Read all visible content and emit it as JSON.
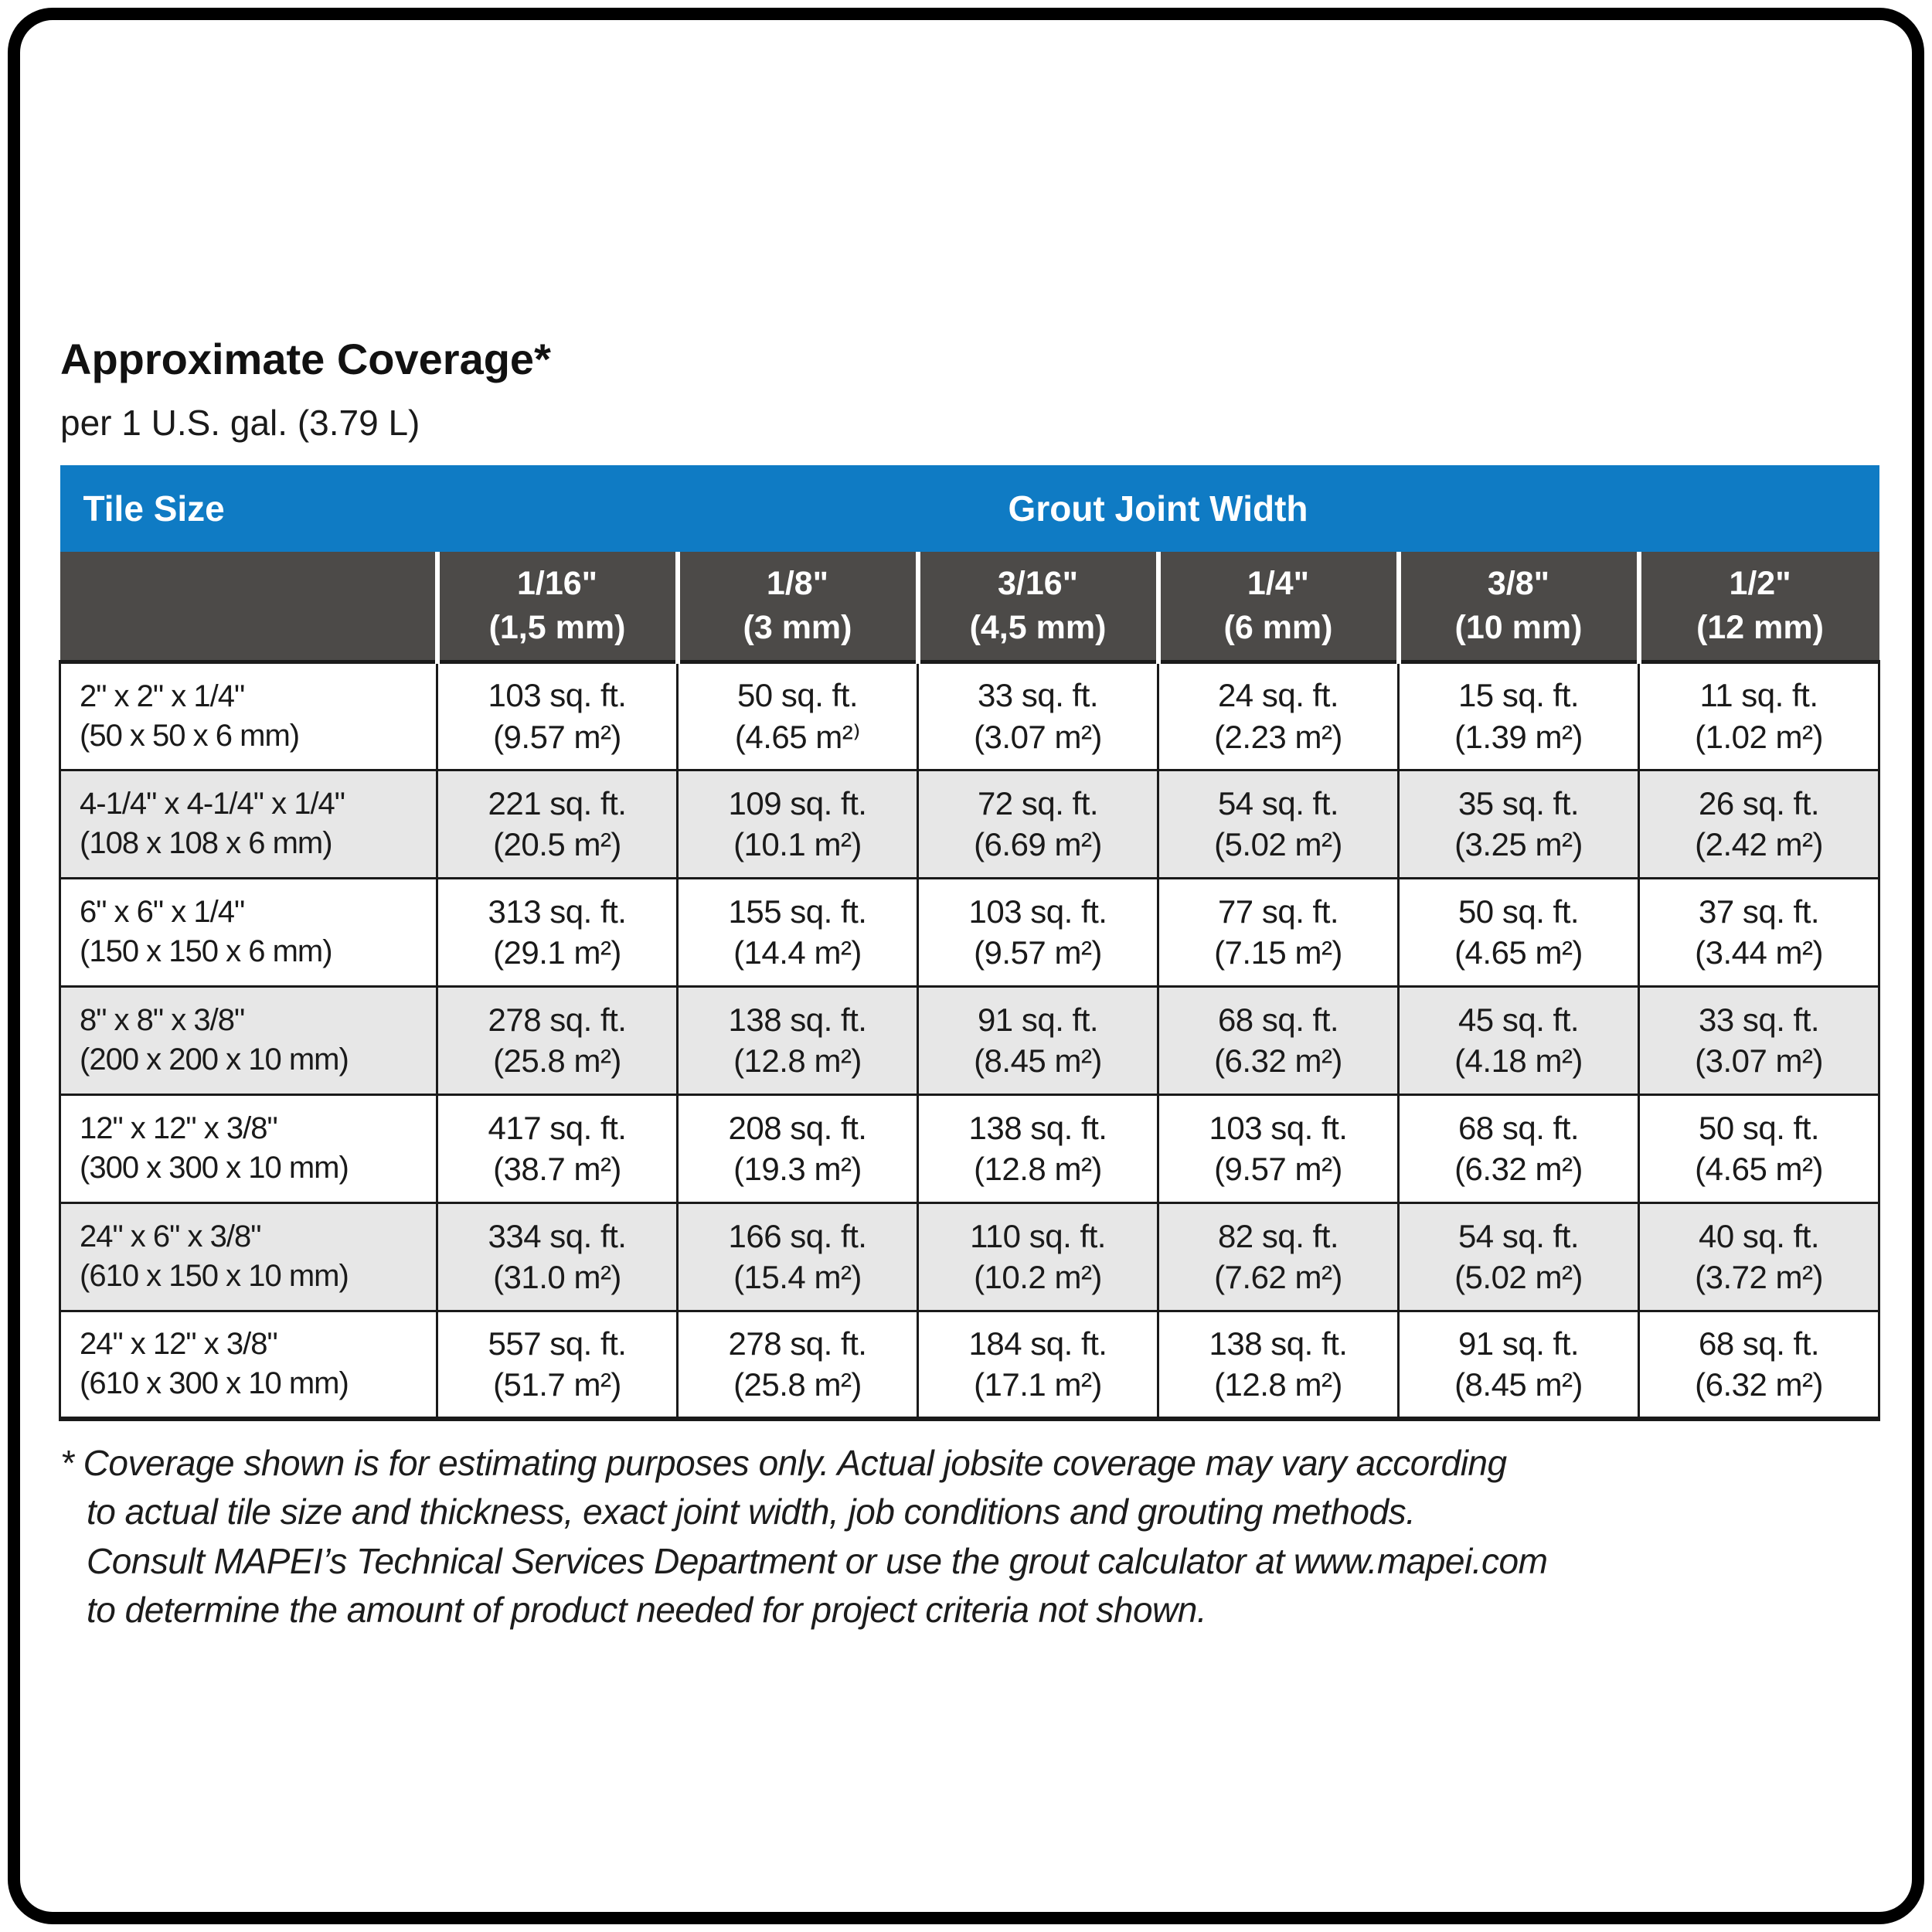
{
  "title": "Approximate Coverage*",
  "subtitle": "per 1 U.S. gal. (3.79 L)",
  "colors": {
    "header_blue": "#0f7bc4",
    "subheader_gray": "#4c4a48",
    "row_alt_gray": "#e7e7e7",
    "ink": "#1a1a1a"
  },
  "table": {
    "corner_header": "Tile Size",
    "group_header": "Grout Joint Width",
    "columns": [
      [
        "1/16\"",
        "(1,5 mm)"
      ],
      [
        "1/8\"",
        "(3 mm)"
      ],
      [
        "3/16\"",
        "(4,5 mm)"
      ],
      [
        "1/4\"",
        "(6 mm)"
      ],
      [
        "3/8\"",
        "(10 mm)"
      ],
      [
        "1/2\"",
        "(12 mm)"
      ]
    ],
    "rows": [
      {
        "size": [
          "2\" x 2\" x 1/4\"",
          "(50 x 50 x 6 mm)"
        ],
        "cells": [
          [
            "103 sq. ft.",
            "(9.57 m²)"
          ],
          [
            "50 sq. ft.",
            "(4.65 m²⁾"
          ],
          [
            "33 sq. ft.",
            "(3.07 m²)"
          ],
          [
            "24 sq. ft.",
            "(2.23 m²)"
          ],
          [
            "15 sq. ft.",
            "(1.39 m²)"
          ],
          [
            "11 sq. ft.",
            "(1.02 m²)"
          ]
        ]
      },
      {
        "size": [
          "4-1/4\" x 4-1/4\" x 1/4\"",
          "(108 x 108 x 6 mm)"
        ],
        "cells": [
          [
            "221 sq. ft.",
            "(20.5 m²)"
          ],
          [
            "109 sq. ft.",
            "(10.1 m²)"
          ],
          [
            "72 sq. ft.",
            "(6.69 m²)"
          ],
          [
            "54 sq. ft.",
            "(5.02 m²)"
          ],
          [
            "35 sq. ft.",
            "(3.25 m²)"
          ],
          [
            "26 sq. ft.",
            "(2.42 m²)"
          ]
        ]
      },
      {
        "size": [
          "6\" x 6\" x 1/4\"",
          "(150 x 150 x 6 mm)"
        ],
        "cells": [
          [
            "313 sq. ft.",
            "(29.1 m²)"
          ],
          [
            "155 sq. ft.",
            "(14.4 m²)"
          ],
          [
            "103 sq. ft.",
            "(9.57 m²)"
          ],
          [
            "77 sq. ft.",
            "(7.15 m²)"
          ],
          [
            "50 sq. ft.",
            "(4.65 m²)"
          ],
          [
            "37 sq. ft.",
            "(3.44 m²)"
          ]
        ]
      },
      {
        "size": [
          "8\" x 8\" x 3/8\"",
          "(200 x 200 x 10 mm)"
        ],
        "cells": [
          [
            "278 sq. ft.",
            "(25.8 m²)"
          ],
          [
            "138 sq. ft.",
            "(12.8 m²)"
          ],
          [
            "91 sq. ft.",
            "(8.45 m²)"
          ],
          [
            "68 sq. ft.",
            "(6.32 m²)"
          ],
          [
            "45 sq. ft.",
            "(4.18 m²)"
          ],
          [
            "33 sq. ft.",
            "(3.07 m²)"
          ]
        ]
      },
      {
        "size": [
          "12\" x 12\" x 3/8\"",
          "(300 x 300 x 10 mm)"
        ],
        "cells": [
          [
            "417 sq. ft.",
            "(38.7 m²)"
          ],
          [
            "208 sq. ft.",
            "(19.3 m²)"
          ],
          [
            "138 sq. ft.",
            "(12.8 m²)"
          ],
          [
            "103 sq. ft.",
            "(9.57 m²)"
          ],
          [
            "68 sq. ft.",
            "(6.32 m²)"
          ],
          [
            "50 sq. ft.",
            "(4.65 m²)"
          ]
        ]
      },
      {
        "size": [
          "24\" x 6\" x 3/8\"",
          "(610 x 150 x 10 mm)"
        ],
        "cells": [
          [
            "334 sq. ft.",
            "(31.0 m²)"
          ],
          [
            "166 sq. ft.",
            "(15.4 m²)"
          ],
          [
            "110 sq. ft.",
            "(10.2 m²)"
          ],
          [
            "82 sq. ft.",
            "(7.62 m²)"
          ],
          [
            "54 sq. ft.",
            "(5.02 m²)"
          ],
          [
            "40 sq. ft.",
            "(3.72 m²)"
          ]
        ]
      },
      {
        "size": [
          "24\" x 12\" x 3/8\"",
          "(610 x 300 x 10 mm)"
        ],
        "cells": [
          [
            "557 sq. ft.",
            "(51.7 m²)"
          ],
          [
            "278 sq. ft.",
            "(25.8 m²)"
          ],
          [
            "184 sq. ft.",
            "(17.1 m²)"
          ],
          [
            "138 sq. ft.",
            "(12.8 m²)"
          ],
          [
            "91 sq. ft.",
            "(8.45 m²)"
          ],
          [
            "68 sq. ft.",
            "(6.32 m²)"
          ]
        ]
      }
    ]
  },
  "footnote": {
    "lines": [
      "* Coverage shown is for estimating purposes only. Actual jobsite coverage may vary according",
      "to actual tile size and thickness, exact joint width, job conditions and grouting methods.",
      "Consult MAPEI’s Technical Services Department or use the grout calculator at www.mapei.com",
      "to determine the amount of product needed for project criteria not shown."
    ]
  }
}
